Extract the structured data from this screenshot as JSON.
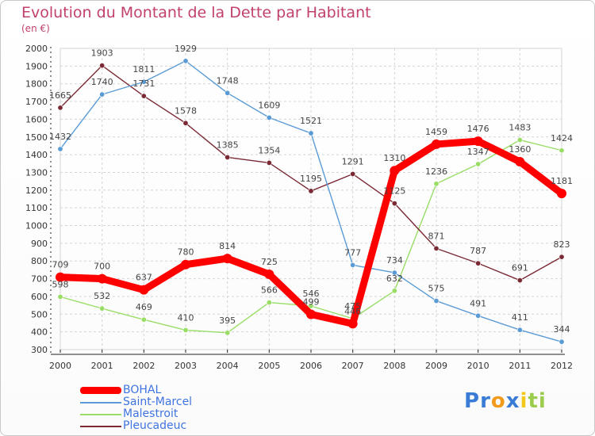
{
  "header": {
    "title": "Evolution du Montant de la Dette par Habitant",
    "subtitle": "(en €)"
  },
  "colors": {
    "title": "#c1406e",
    "legend_text": "#3f74e0",
    "axis": "#222222",
    "grid": "#d4d4d4"
  },
  "chart_data": {
    "type": "line",
    "x": [
      "2000",
      "2001",
      "2002",
      "2003",
      "2004",
      "2005",
      "2006",
      "2007",
      "2008",
      "2009",
      "2010",
      "2011",
      "2012"
    ],
    "ylim": [
      300,
      2000
    ],
    "yticks": [
      300,
      400,
      500,
      600,
      700,
      800,
      900,
      1000,
      1100,
      1200,
      1300,
      1400,
      1500,
      1600,
      1700,
      1800,
      1900,
      2000
    ],
    "grid": true,
    "legend_position": "bottom-left",
    "series": [
      {
        "name": "BOHAL",
        "color": "#ff0000",
        "values": [
          709,
          700,
          637,
          780,
          814,
          725,
          499,
          446,
          1310,
          1459,
          1476,
          1360,
          1181
        ],
        "labels": [
          "709",
          "700",
          "637",
          "780",
          "814",
          "725",
          "499",
          "446",
          "1310",
          "1459",
          "1476",
          "1360",
          "1181"
        ]
      },
      {
        "name": "Saint-Marcel",
        "color": "#5a9bd5",
        "values": [
          1432,
          1740,
          1811,
          1929,
          1748,
          1609,
          1521,
          777,
          734,
          575,
          491,
          411,
          344
        ],
        "labels": [
          "1432",
          "1740",
          "1811",
          "1929",
          "1748",
          "1609",
          "1521",
          "777",
          "734",
          "575",
          "491",
          "411",
          "344"
        ]
      },
      {
        "name": "Malestroit",
        "color": "#99dd66",
        "values": [
          598,
          532,
          469,
          410,
          395,
          566,
          546,
          475,
          632,
          1236,
          1347,
          1483,
          1424
        ],
        "labels": [
          "598",
          "532",
          "469",
          "410",
          "395",
          "566",
          "546",
          "475",
          "632",
          "1236",
          "1347",
          "1483",
          "1424"
        ]
      },
      {
        "name": "Pleucadeuc",
        "color": "#7a2a35",
        "values": [
          1665,
          1903,
          1731,
          1578,
          1385,
          1354,
          1195,
          1291,
          1125,
          871,
          787,
          691,
          823
        ],
        "labels": [
          "1665",
          "1903",
          "1731",
          "1578",
          "1385",
          "1354",
          "1195",
          "1291",
          "1125",
          "871",
          "787",
          "691",
          "823"
        ]
      }
    ]
  },
  "logo": {
    "text": "Proxiti",
    "letters": [
      "P",
      "r",
      "o",
      "x",
      "i",
      "t",
      "i"
    ],
    "colors": [
      "#3a7bd5",
      "#3a7bd5",
      "#f29a1b",
      "#3a7bd5",
      "#f2c81b",
      "#9ccc4d",
      "#9ccc4d"
    ]
  }
}
